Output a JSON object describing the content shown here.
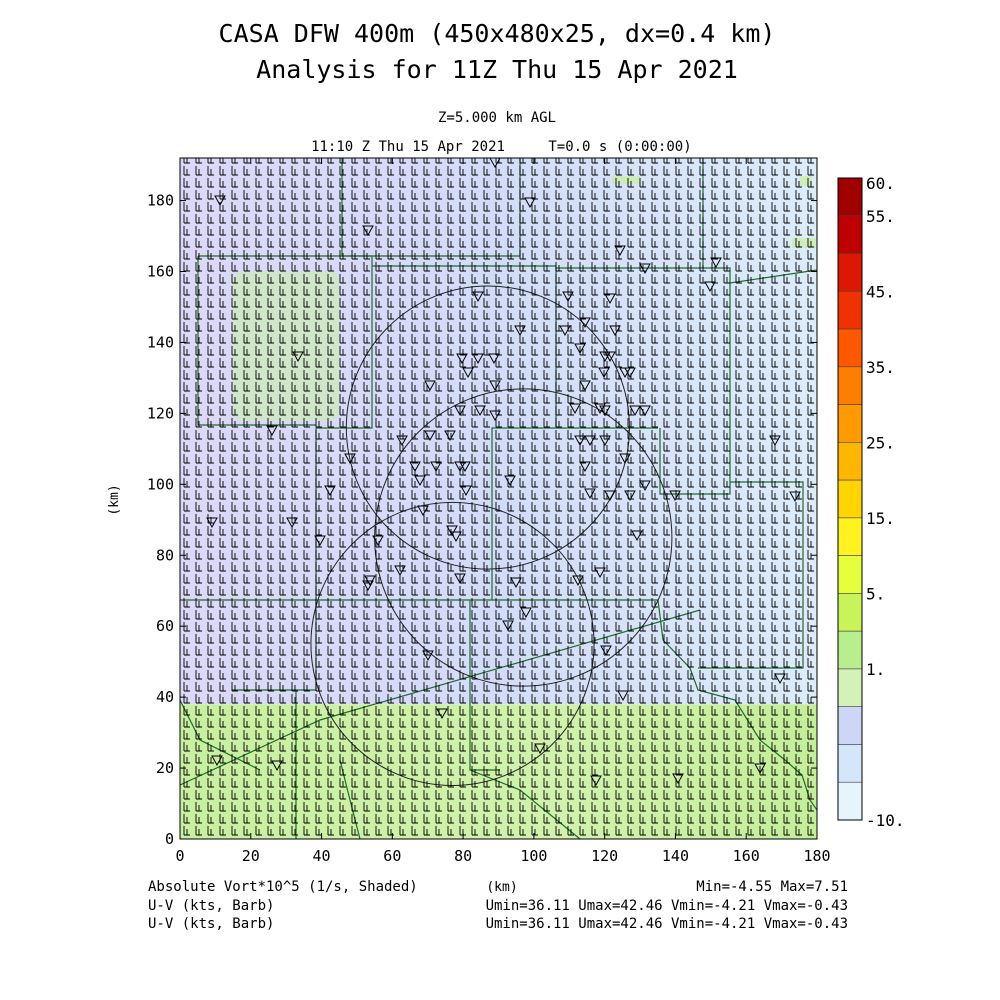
{
  "header": {
    "title_line1": "CASA DFW 400m (450x480x25, dx=0.4 km)",
    "title_line2": "Analysis for 11Z Thu 15 Apr 2021",
    "level": "Z=5.000 km AGL",
    "time": "11:10 Z Thu 15 Apr 2021",
    "tstamp": "T=0.0 s (0:00:00)"
  },
  "footer": {
    "shaded_label": "Absolute Vort*10^5 (1/s, Shaded)",
    "x_unit": "(km)",
    "minmax": "Min=-4.55 Max=7.51",
    "barb1_label": "U-V (kts, Barb)",
    "barb1_stats": "Umin=36.11 Umax=42.46 Vmin=-4.21 Vmax=-0.43",
    "barb2_label": "U-V (kts, Barb)",
    "barb2_stats": "Umin=36.11 Umax=42.46 Vmin=-4.21 Vmax=-0.43"
  },
  "chart_data": {
    "type": "heatmap",
    "xlabel": "",
    "ylabel": "(km)",
    "xlim": [
      0,
      180
    ],
    "ylim": [
      0,
      192
    ],
    "x_ticks": [
      "0",
      "20",
      "40",
      "60",
      "80",
      "100",
      "120",
      "140",
      "160",
      "180"
    ],
    "y_ticks": [
      "0",
      "20",
      "40",
      "60",
      "80",
      "100",
      "120",
      "140",
      "160",
      "180"
    ],
    "field_regions": [
      {
        "x": [
          0,
          180
        ],
        "y": [
          38,
          192
        ],
        "level": "1."
      },
      {
        "x": [
          0,
          180
        ],
        "y": [
          0,
          38
        ],
        "level": "5."
      },
      {
        "x": [
          15,
          45
        ],
        "y": [
          118,
          160
        ],
        "level": "5."
      }
    ],
    "colorbar": {
      "labels": [
        "60.",
        "55.",
        "45.",
        "35.",
        "25.",
        "15.",
        "5.",
        "1.",
        "-10."
      ],
      "colors": [
        "#a00000",
        "#c00000",
        "#dd1800",
        "#f03200",
        "#ff5800",
        "#ff7e00",
        "#ff9a00",
        "#ffb600",
        "#ffd400",
        "#fff21e",
        "#e6ff3c",
        "#c8f45a",
        "#b8ee8c",
        "#d2f2b8",
        "#cdd6f6",
        "#d4e6fa",
        "#e6f5fc"
      ]
    },
    "radar_circles": [
      {
        "cx": 77,
        "cy": 55,
        "r": 40
      },
      {
        "cx": 97,
        "cy": 85,
        "r": 42
      },
      {
        "cx": 87,
        "cy": 116,
        "r": 40
      }
    ]
  }
}
